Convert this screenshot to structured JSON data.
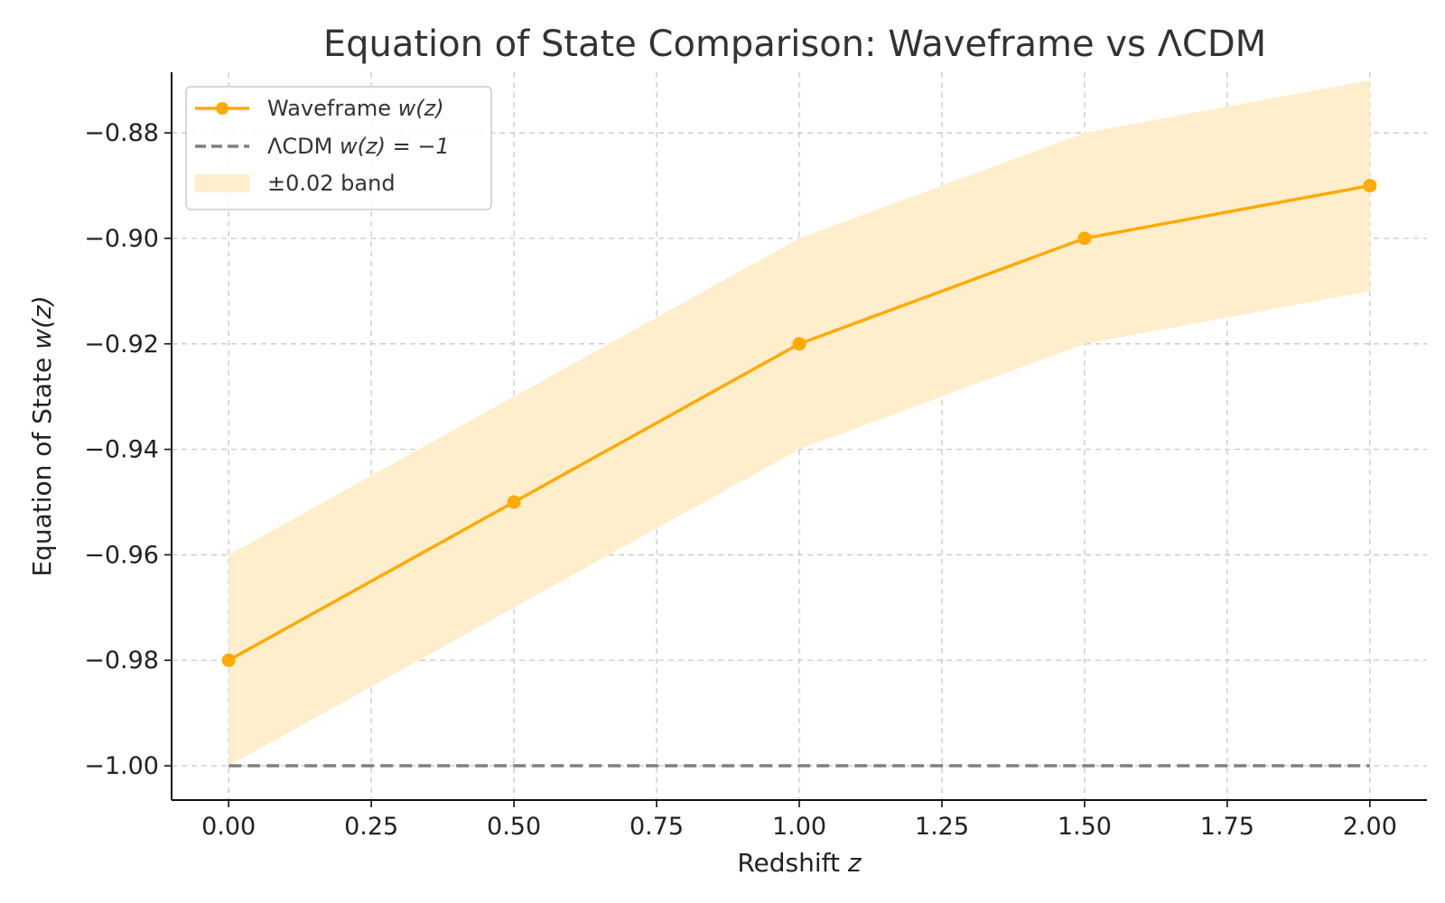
{
  "chart_data": {
    "type": "line",
    "title": "Equation of State Comparison: Waveframe vs ΛCDM",
    "xlabel": "Redshift",
    "xlabel_var": "z",
    "ylabel": "Equation of State",
    "ylabel_var": "w(z)",
    "x": [
      0.0,
      0.5,
      1.0,
      1.5,
      2.0
    ],
    "xlim": [
      -0.1,
      2.1
    ],
    "ylim": [
      -1.0065,
      -0.8685
    ],
    "xticks": [
      "0.00",
      "0.25",
      "0.50",
      "0.75",
      "1.00",
      "1.25",
      "1.50",
      "1.75",
      "2.00"
    ],
    "yticks": [
      "−1.00",
      "−0.98",
      "−0.96",
      "−0.94",
      "−0.92",
      "−0.90",
      "−0.88"
    ],
    "grid": true,
    "legend_position": "top-left",
    "series": [
      {
        "name": "Waveframe w(z)",
        "legend_prefix": "Waveframe ",
        "legend_var": "w(z)",
        "values": [
          -0.98,
          -0.95,
          -0.92,
          -0.9,
          -0.89
        ],
        "color": "#FFAA00",
        "style": "solid-markers"
      },
      {
        "name": "ΛCDM w(z) = −1",
        "legend_prefix": "ΛCDM ",
        "legend_var": "w(z) = −1",
        "values": [
          -1.0,
          -1.0,
          -1.0,
          -1.0,
          -1.0
        ],
        "color": "#808080",
        "style": "dashed"
      },
      {
        "name": "±0.02 band",
        "legend_prefix": "±0.02 band",
        "legend_var": "",
        "lower": [
          -1.0,
          -0.97,
          -0.94,
          -0.92,
          -0.91
        ],
        "upper": [
          -0.96,
          -0.93,
          -0.9,
          -0.88,
          -0.87
        ],
        "color": "#FFEECC",
        "style": "band"
      }
    ]
  }
}
